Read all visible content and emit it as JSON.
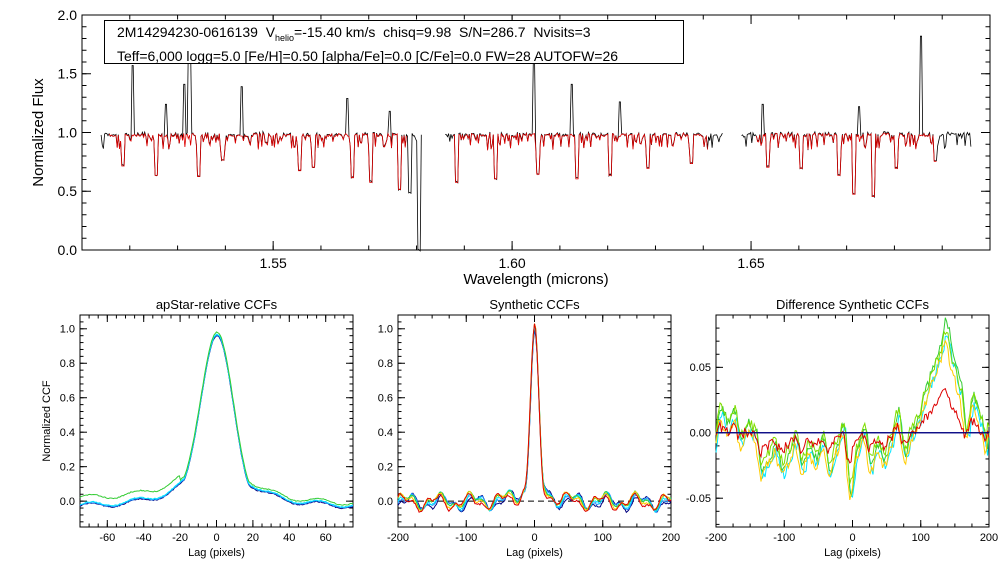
{
  "header": {
    "star_id": "2M14294230-0616139",
    "vhelio_label": "V",
    "vhelio_sub": "helio",
    "vhelio_value": "=-15.40 km/s",
    "chisq": "chisq=9.98",
    "snr": "S/N=286.7",
    "nvisits": "Nvisits=3",
    "params_line": "Teff=6,000 logg=5.0 [Fe/H]=0.50 [alpha/Fe]=0.0 [C/Fe]=0.0 FW=28 AUTOFW=26"
  },
  "colors": {
    "observed": "#000000",
    "model": "#dd0000",
    "ccf_series": [
      "#000080",
      "#1e90ff",
      "#00e5ff",
      "#33cc33",
      "#7fdd00",
      "#ffcc00",
      "#dd0000"
    ]
  },
  "chart_data": [
    {
      "id": "spectrum",
      "type": "line",
      "title": "",
      "xlabel": "Wavelength (microns)",
      "ylabel": "Normalized Flux",
      "xlim": [
        1.51,
        1.7
      ],
      "ylim": [
        0.0,
        2.0
      ],
      "xticks": [
        {
          "v": 1.55,
          "label": "1.55"
        },
        {
          "v": 1.6,
          "label": "1.60"
        },
        {
          "v": 1.65,
          "label": "1.65"
        }
      ],
      "yticks": [
        {
          "v": 0.0,
          "label": "0.0"
        },
        {
          "v": 0.5,
          "label": "0.5"
        },
        {
          "v": 1.0,
          "label": "1.0"
        },
        {
          "v": 1.5,
          "label": "1.5"
        },
        {
          "v": 2.0,
          "label": "2.0"
        }
      ],
      "chips": [
        [
          1.514,
          1.581
        ],
        [
          1.586,
          1.644
        ],
        [
          1.648,
          1.696
        ]
      ],
      "emission_spikes": [
        [
          1.5205,
          1.57
        ],
        [
          1.5275,
          1.24
        ],
        [
          1.5315,
          1.41
        ],
        [
          1.5325,
          1.72
        ],
        [
          1.5435,
          1.39
        ],
        [
          1.5655,
          1.29
        ],
        [
          1.5745,
          1.18
        ],
        [
          1.6045,
          1.66
        ],
        [
          1.6125,
          1.41
        ],
        [
          1.6225,
          1.26
        ],
        [
          1.6525,
          1.24
        ],
        [
          1.6725,
          1.22
        ],
        [
          1.6855,
          1.82
        ]
      ],
      "absorption_lines": [
        [
          1.5185,
          0.72
        ],
        [
          1.5255,
          0.64
        ],
        [
          1.5345,
          0.63
        ],
        [
          1.5395,
          0.77
        ],
        [
          1.5555,
          0.68
        ],
        [
          1.5585,
          0.71
        ],
        [
          1.5665,
          0.62
        ],
        [
          1.5705,
          0.58
        ],
        [
          1.5765,
          0.52
        ],
        [
          1.5785,
          0.49
        ],
        [
          1.5805,
          0.0
        ],
        [
          1.5885,
          0.58
        ],
        [
          1.5965,
          0.61
        ],
        [
          1.6055,
          0.65
        ],
        [
          1.6135,
          0.61
        ],
        [
          1.6205,
          0.64
        ],
        [
          1.6285,
          0.7
        ],
        [
          1.6375,
          0.74
        ],
        [
          1.6535,
          0.71
        ],
        [
          1.6605,
          0.7
        ],
        [
          1.6685,
          0.64
        ],
        [
          1.6715,
          0.48
        ],
        [
          1.6755,
          0.46
        ],
        [
          1.6805,
          0.7
        ],
        [
          1.6885,
          0.76
        ]
      ]
    },
    {
      "id": "aprel",
      "type": "line",
      "title": "apStar-relative CCFs",
      "xlabel": "Lag (pixels)",
      "ylabel": "Normalized CCF",
      "xlim": [
        -75,
        75
      ],
      "ylim": [
        -0.15,
        1.08
      ],
      "xticks": [
        {
          "v": -60,
          "label": "-60"
        },
        {
          "v": -40,
          "label": "-40"
        },
        {
          "v": -20,
          "label": "-20"
        },
        {
          "v": 0,
          "label": "0"
        },
        {
          "v": 20,
          "label": "20"
        },
        {
          "v": 40,
          "label": "40"
        },
        {
          "v": 60,
          "label": "60"
        }
      ],
      "yticks": [
        {
          "v": 0.0,
          "label": "0.0"
        },
        {
          "v": 0.2,
          "label": "0.2"
        },
        {
          "v": 0.4,
          "label": "0.4"
        },
        {
          "v": 0.6,
          "label": "0.6"
        },
        {
          "v": 0.8,
          "label": "0.8"
        },
        {
          "v": 1.0,
          "label": "1.0"
        }
      ],
      "profile": {
        "kind": "aprel",
        "peak": 1.0,
        "width": 9,
        "wing": 0.32,
        "floor": -0.04
      },
      "series": [
        {
          "color": "#000080",
          "offset": 0.0
        },
        {
          "color": "#1e90ff",
          "offset": 0.004
        },
        {
          "color": "#00e5ff",
          "offset": 0.008
        },
        {
          "color": "#33cc33",
          "offset": 0.02
        }
      ]
    },
    {
      "id": "synth",
      "type": "line",
      "title": "Synthetic CCFs",
      "xlabel": "Lag (pixels)",
      "ylabel": "",
      "xlim": [
        -200,
        200
      ],
      "ylim": [
        -0.15,
        1.08
      ],
      "xticks": [
        {
          "v": -200,
          "label": "-200"
        },
        {
          "v": -100,
          "label": "-100"
        },
        {
          "v": 0,
          "label": "0"
        },
        {
          "v": 100,
          "label": "100"
        },
        {
          "v": 200,
          "label": "200"
        }
      ],
      "yticks": [
        {
          "v": 0.0,
          "label": "0.0"
        },
        {
          "v": 0.2,
          "label": "0.2"
        },
        {
          "v": 0.4,
          "label": "0.4"
        },
        {
          "v": 0.6,
          "label": "0.6"
        },
        {
          "v": 0.8,
          "label": "0.8"
        },
        {
          "v": 1.0,
          "label": "1.0"
        }
      ],
      "zero_line": 0.0,
      "profile": {
        "kind": "synth",
        "peak": 1.0,
        "width": 6,
        "wing": 0.22,
        "floor": -0.01
      },
      "series": [
        {
          "color": "#000080",
          "offset": 0.0
        },
        {
          "color": "#1e90ff",
          "offset": 0.004
        },
        {
          "color": "#00e5ff",
          "offset": 0.006
        },
        {
          "color": "#33cc33",
          "offset": 0.012
        },
        {
          "color": "#ffcc00",
          "offset": 0.008
        },
        {
          "color": "#dd0000",
          "offset": 0.002
        }
      ]
    },
    {
      "id": "diff",
      "type": "line",
      "title": "Difference Synthetic CCFs",
      "xlabel": "Lag (pixels)",
      "ylabel": "",
      "xlim": [
        -200,
        200
      ],
      "ylim": [
        -0.072,
        0.09
      ],
      "xticks": [
        {
          "v": -200,
          "label": "-200"
        },
        {
          "v": -100,
          "label": "-100"
        },
        {
          "v": 0,
          "label": "0"
        },
        {
          "v": 100,
          "label": "100"
        },
        {
          "v": 200,
          "label": "200"
        }
      ],
      "yticks": [
        {
          "v": -0.05,
          "label": "-0.05"
        },
        {
          "v": 0.0,
          "label": "0.00"
        },
        {
          "v": 0.05,
          "label": "0.05"
        }
      ],
      "zero_line": 0.0,
      "anchors": [
        [
          -200,
          -0.01
        ],
        [
          -190,
          0.018
        ],
        [
          -180,
          0.005
        ],
        [
          -170,
          0.015
        ],
        [
          -160,
          -0.005
        ],
        [
          -150,
          0.005
        ],
        [
          -140,
          0.0
        ],
        [
          -130,
          -0.03
        ],
        [
          -120,
          -0.02
        ],
        [
          -110,
          -0.01
        ],
        [
          -100,
          -0.028
        ],
        [
          -90,
          -0.018
        ],
        [
          -80,
          -0.005
        ],
        [
          -70,
          -0.025
        ],
        [
          -60,
          -0.012
        ],
        [
          -50,
          -0.02
        ],
        [
          -40,
          -0.005
        ],
        [
          -30,
          -0.03
        ],
        [
          -20,
          -0.01
        ],
        [
          -10,
          0.005
        ],
        [
          0,
          -0.045
        ],
        [
          10,
          -0.015
        ],
        [
          20,
          0.003
        ],
        [
          30,
          -0.025
        ],
        [
          40,
          -0.01
        ],
        [
          50,
          -0.022
        ],
        [
          60,
          -0.005
        ],
        [
          70,
          0.015
        ],
        [
          80,
          -0.018
        ],
        [
          90,
          0.0
        ],
        [
          100,
          0.01
        ],
        [
          110,
          0.03
        ],
        [
          120,
          0.045
        ],
        [
          130,
          0.06
        ],
        [
          140,
          0.08
        ],
        [
          150,
          0.055
        ],
        [
          160,
          0.035
        ],
        [
          170,
          0.0
        ],
        [
          180,
          0.025
        ],
        [
          190,
          0.01
        ],
        [
          200,
          -0.01
        ]
      ],
      "series": [
        {
          "color": "#000080",
          "scale": 0.0,
          "offset": 0.0,
          "phase": 0
        },
        {
          "color": "#00e5ff",
          "scale": 1.0,
          "offset": -0.004,
          "phase": 1
        },
        {
          "color": "#33cc33",
          "scale": 1.05,
          "offset": 0.002,
          "phase": 2
        },
        {
          "color": "#7fdd00",
          "scale": 0.92,
          "offset": 0.004,
          "phase": 3
        },
        {
          "color": "#ffcc00",
          "scale": 0.95,
          "offset": -0.006,
          "phase": 4
        },
        {
          "color": "#dd0000",
          "scale": 0.42,
          "offset": -0.002,
          "phase": 5
        }
      ]
    }
  ]
}
